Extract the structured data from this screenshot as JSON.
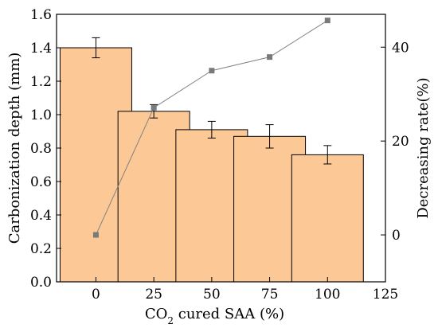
{
  "chart_data": {
    "type": "bar",
    "x": [
      0,
      25,
      50,
      75,
      100
    ],
    "xlim": [
      -17,
      125
    ],
    "xticks": [
      0,
      25,
      50,
      75,
      100,
      125
    ],
    "xlabel_parts": [
      "CO",
      "2",
      " cured SAA (%)"
    ],
    "ylabel": "Carbonization depth (mm)",
    "ylim": [
      0,
      1.6
    ],
    "yticks": [
      0.0,
      0.2,
      0.4,
      0.6,
      0.8,
      1.0,
      1.2,
      1.4,
      1.6
    ],
    "y2label": "Decreasing rate(%)",
    "y2lim": [
      -10,
      47
    ],
    "y2ticks": [
      0,
      20,
      40
    ],
    "series": [
      {
        "type": "bar",
        "axis": "left",
        "values": [
          1.4,
          1.02,
          0.91,
          0.87,
          0.76
        ],
        "errors": [
          0.06,
          0.04,
          0.05,
          0.07,
          0.055
        ],
        "color": "#fcc996",
        "edge": "#000000"
      },
      {
        "type": "line",
        "axis": "right",
        "values": [
          0,
          27.1,
          35.0,
          37.9,
          45.7
        ],
        "color": "#808080",
        "marker": "square"
      }
    ],
    "grid": false,
    "legend": "none"
  }
}
